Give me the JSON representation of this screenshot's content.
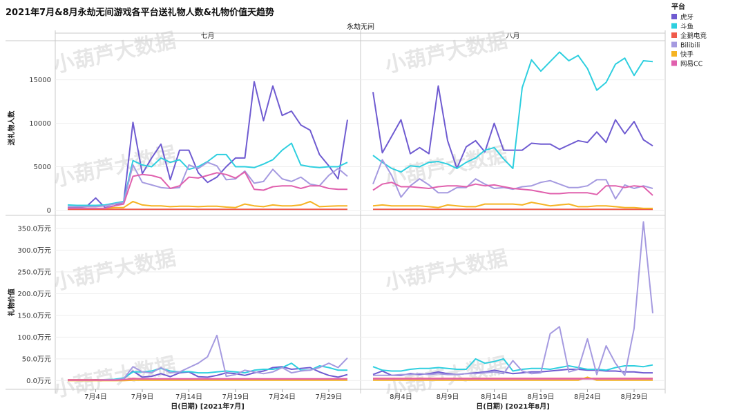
{
  "chart_data": {
    "type": "line",
    "title": "2021年7月&8月永劫无间游戏各平台送礼物人数&礼物价值天趋势",
    "game_header": "永劫无间",
    "watermark": "小葫芦大数据",
    "legend_title": "平台",
    "series_names": [
      "虎牙",
      "斗鱼",
      "企鹅电竞",
      "Bilibili",
      "快手",
      "网易CC"
    ],
    "colors": {
      "虎牙": "#6f5bd1",
      "斗鱼": "#2ecfdf",
      "企鹅电竞": "#ef5b4b",
      "Bilibili": "#a59ae0",
      "快手": "#f5b322",
      "网易CC": "#e060ad"
    },
    "months": [
      {
        "name": "七月",
        "xlabel": "日(日期) [2021年7月]",
        "days": 31,
        "ticks": [
          {
            "day": 4,
            "label": "7月4日"
          },
          {
            "day": 9,
            "label": "7月9日"
          },
          {
            "day": 14,
            "label": "7月14日"
          },
          {
            "day": 19,
            "label": "7月19日"
          },
          {
            "day": 24,
            "label": "7月24日"
          },
          {
            "day": 29,
            "label": "7月29日"
          }
        ]
      },
      {
        "name": "八月",
        "xlabel": "日(日期) [2021年8月]",
        "days": 31,
        "ticks": [
          {
            "day": 4,
            "label": "8月4日"
          },
          {
            "day": 9,
            "label": "8月9日"
          },
          {
            "day": 14,
            "label": "8月14日"
          },
          {
            "day": 19,
            "label": "8月19日"
          },
          {
            "day": 24,
            "label": "8月24日"
          },
          {
            "day": 29,
            "label": "8月29日"
          }
        ]
      }
    ],
    "rows": [
      {
        "ylabel": "送礼物人数",
        "ylim": [
          -600,
          19500
        ],
        "yticks": [
          0,
          5000,
          10000,
          15000
        ],
        "ytick_labels": [
          "0",
          "5000",
          "10000",
          "15000"
        ],
        "data": {
          "七月": {
            "虎牙": [
              300,
              300,
              400,
              1400,
              300,
              500,
              900,
              10100,
              4200,
              6000,
              7600,
              3500,
              6900,
              6900,
              4300,
              3200,
              3800,
              5000,
              6000,
              6000,
              14800,
              10300,
              14300,
              10900,
              11400,
              9800,
              9200,
              6400,
              5100,
              3600,
              10400
            ],
            "斗鱼": [
              600,
              550,
              550,
              550,
              600,
              800,
              1000,
              5700,
              5200,
              5000,
              6000,
              5500,
              5800,
              4700,
              5000,
              5600,
              6400,
              6400,
              5000,
              5000,
              4900,
              5300,
              5800,
              6900,
              7700,
              5200,
              5000,
              4900,
              5000,
              5000,
              5500
            ],
            "企鹅电竞": [
              100,
              100,
              100,
              100,
              100,
              100,
              100,
              100,
              100,
              100,
              100,
              100,
              100,
              100,
              100,
              100,
              100,
              100,
              100,
              100,
              100,
              100,
              100,
              100,
              100,
              100,
              100,
              100,
              100,
              100,
              100
            ],
            "Bilibili": [
              400,
              400,
              400,
              400,
              500,
              700,
              900,
              5200,
              3200,
              2900,
              2600,
              2500,
              2600,
              5200,
              4800,
              5500,
              5100,
              3500,
              3600,
              4500,
              3100,
              3300,
              4700,
              3600,
              3300,
              3800,
              3000,
              2800,
              4000,
              4800,
              3900
            ],
            "快手": [
              200,
              200,
              200,
              200,
              200,
              300,
              300,
              1000,
              600,
              500,
              500,
              400,
              450,
              450,
              400,
              450,
              450,
              350,
              300,
              700,
              500,
              400,
              600,
              500,
              500,
              600,
              1000,
              400,
              450,
              500,
              500
            ],
            "网易CC": [
              200,
              200,
              200,
              200,
              200,
              500,
              700,
              3900,
              4100,
              4000,
              3700,
              2500,
              2800,
              3800,
              3700,
              4000,
              4300,
              4100,
              3700,
              4400,
              2400,
              2300,
              2700,
              2800,
              2800,
              2500,
              2800,
              2800,
              2500,
              2400,
              2400
            ]
          },
          "八月": {
            "虎牙": [
              13600,
              6600,
              8500,
              10400,
              6500,
              7200,
              6500,
              14300,
              8000,
              4800,
              7300,
              8000,
              6700,
              10000,
              6900,
              6900,
              6900,
              7700,
              7600,
              7600,
              7000,
              7500,
              8000,
              7800,
              9000,
              7800,
              10400,
              8800,
              10200,
              8100,
              7400
            ],
            "斗鱼": [
              6300,
              5500,
              4800,
              4400,
              5100,
              5000,
              5500,
              5600,
              5300,
              4800,
              5500,
              6000,
              6900,
              7200,
              5900,
              4800,
              14100,
              17300,
              16000,
              17100,
              18200,
              17200,
              17800,
              16300,
              13800,
              14700,
              16800,
              17500,
              15500,
              17200,
              17100
            ],
            "企鹅电竞": [
              100,
              100,
              100,
              100,
              100,
              100,
              100,
              100,
              100,
              100,
              100,
              100,
              100,
              100,
              100,
              100,
              100,
              100,
              100,
              100,
              100,
              100,
              100,
              100,
              100,
              100,
              100,
              100,
              100,
              100,
              100
            ],
            "Bilibili": [
              3000,
              5800,
              4000,
              1500,
              2800,
              3600,
              2900,
              2000,
              2000,
              2600,
              2600,
              3600,
              3000,
              2500,
              2600,
              2400,
              2700,
              2800,
              3200,
              3400,
              3000,
              2600,
              2600,
              2800,
              3500,
              3500,
              1300,
              2900,
              2500,
              2800,
              2500
            ],
            "快手": [
              500,
              600,
              500,
              500,
              500,
              500,
              400,
              300,
              600,
              500,
              400,
              400,
              700,
              700,
              700,
              700,
              600,
              900,
              700,
              500,
              600,
              700,
              400,
              400,
              500,
              500,
              400,
              300,
              300,
              200,
              200
            ],
            "网易CC": [
              2300,
              3000,
              3200,
              2700,
              2700,
              2600,
              2500,
              2700,
              2800,
              2800,
              2700,
              3000,
              2800,
              2900,
              2700,
              2500,
              2400,
              2300,
              2100,
              1900,
              1900,
              2000,
              2000,
              2000,
              1800,
              2800,
              2800,
              2600,
              2800,
              2700,
              1700
            ]
          }
        }
      },
      {
        "ylabel": "礼物价值",
        "ylim": [
          -20,
          380
        ],
        "yticks": [
          0,
          50,
          100,
          150,
          200,
          250,
          300,
          350
        ],
        "ytick_labels": [
          "0.0万元",
          "50.0万元",
          "100.0万元",
          "150.0万元",
          "200.0万元",
          "250.0万元",
          "300.0万元",
          "350.0万元"
        ],
        "data": {
          "七月": {
            "虎牙": [
              1,
              1,
              1,
              2,
              1,
              2,
              4,
              22,
              8,
              10,
              16,
              9,
              18,
              20,
              9,
              8,
              12,
              18,
              16,
              12,
              18,
              22,
              30,
              32,
              26,
              28,
              30,
              20,
              12,
              8,
              14
            ],
            "斗鱼": [
              1,
              1,
              1,
              1,
              2,
              3,
              6,
              20,
              20,
              22,
              28,
              22,
              20,
              21,
              18,
              18,
              20,
              22,
              20,
              18,
              24,
              26,
              26,
              30,
              40,
              24,
              24,
              34,
              30,
              24,
              24
            ],
            "企鹅电竞": [
              2,
              2,
              2,
              2,
              2,
              2,
              2,
              5,
              4,
              4,
              4,
              4,
              4,
              4,
              4,
              4,
              4,
              4,
              4,
              4,
              4,
              4,
              4,
              4,
              4,
              4,
              4,
              4,
              4,
              4,
              4
            ],
            "Bilibili": [
              1,
              1,
              1,
              1,
              2,
              2,
              4,
              32,
              20,
              18,
              30,
              18,
              20,
              30,
              40,
              55,
              104,
              10,
              14,
              24,
              20,
              16,
              20,
              30,
              18,
              22,
              24,
              30,
              40,
              30,
              52
            ],
            "快手": [
              0,
              0,
              0,
              0,
              0,
              0,
              0,
              1,
              1,
              1,
              1,
              1,
              1,
              1,
              1,
              1,
              1,
              1,
              1,
              1,
              1,
              1,
              1,
              1,
              1,
              1,
              1,
              1,
              1,
              1,
              1
            ],
            "网易CC": [
              1,
              1,
              1,
              1,
              1,
              1,
              2,
              4,
              4,
              4,
              4,
              4,
              4,
              4,
              4,
              4,
              4,
              4,
              4,
              4,
              4,
              4,
              4,
              4,
              4,
              4,
              4,
              4,
              4,
              4,
              4
            ]
          },
          "八月": {
            "虎牙": [
              14,
              22,
              12,
              12,
              16,
              14,
              16,
              20,
              16,
              14,
              16,
              18,
              20,
              24,
              20,
              16,
              18,
              20,
              20,
              22,
              24,
              26,
              26,
              24,
              24,
              22,
              22,
              20,
              20,
              18,
              18
            ],
            "斗鱼": [
              32,
              24,
              22,
              22,
              26,
              28,
              28,
              30,
              28,
              26,
              26,
              50,
              40,
              44,
              50,
              22,
              26,
              28,
              28,
              26,
              30,
              34,
              30,
              26,
              26,
              24,
              30,
              34,
              34,
              32,
              36
            ],
            "企鹅电竞": [
              5,
              5,
              5,
              5,
              5,
              5,
              5,
              5,
              5,
              5,
              5,
              5,
              5,
              5,
              5,
              5,
              5,
              5,
              5,
              5,
              5,
              5,
              5,
              5,
              5,
              5,
              5,
              5,
              5,
              5,
              5
            ],
            "Bilibili": [
              12,
              12,
              12,
              14,
              14,
              16,
              14,
              16,
              14,
              14,
              16,
              16,
              18,
              20,
              16,
              46,
              22,
              16,
              18,
              108,
              124,
              20,
              26,
              96,
              14,
              80,
              40,
              12,
              120,
              365,
              155
            ],
            "快手": [
              1,
              1,
              1,
              1,
              1,
              1,
              1,
              1,
              1,
              1,
              1,
              1,
              1,
              1,
              1,
              1,
              1,
              1,
              1,
              1,
              1,
              1,
              1,
              8,
              1,
              1,
              1,
              1,
              1,
              1,
              1
            ],
            "网易CC": [
              4,
              4,
              4,
              4,
              4,
              4,
              4,
              4,
              4,
              4,
              4,
              4,
              4,
              4,
              4,
              4,
              4,
              4,
              4,
              4,
              4,
              4,
              4,
              4,
              4,
              4,
              4,
              4,
              4,
              4,
              4
            ]
          }
        }
      }
    ]
  }
}
